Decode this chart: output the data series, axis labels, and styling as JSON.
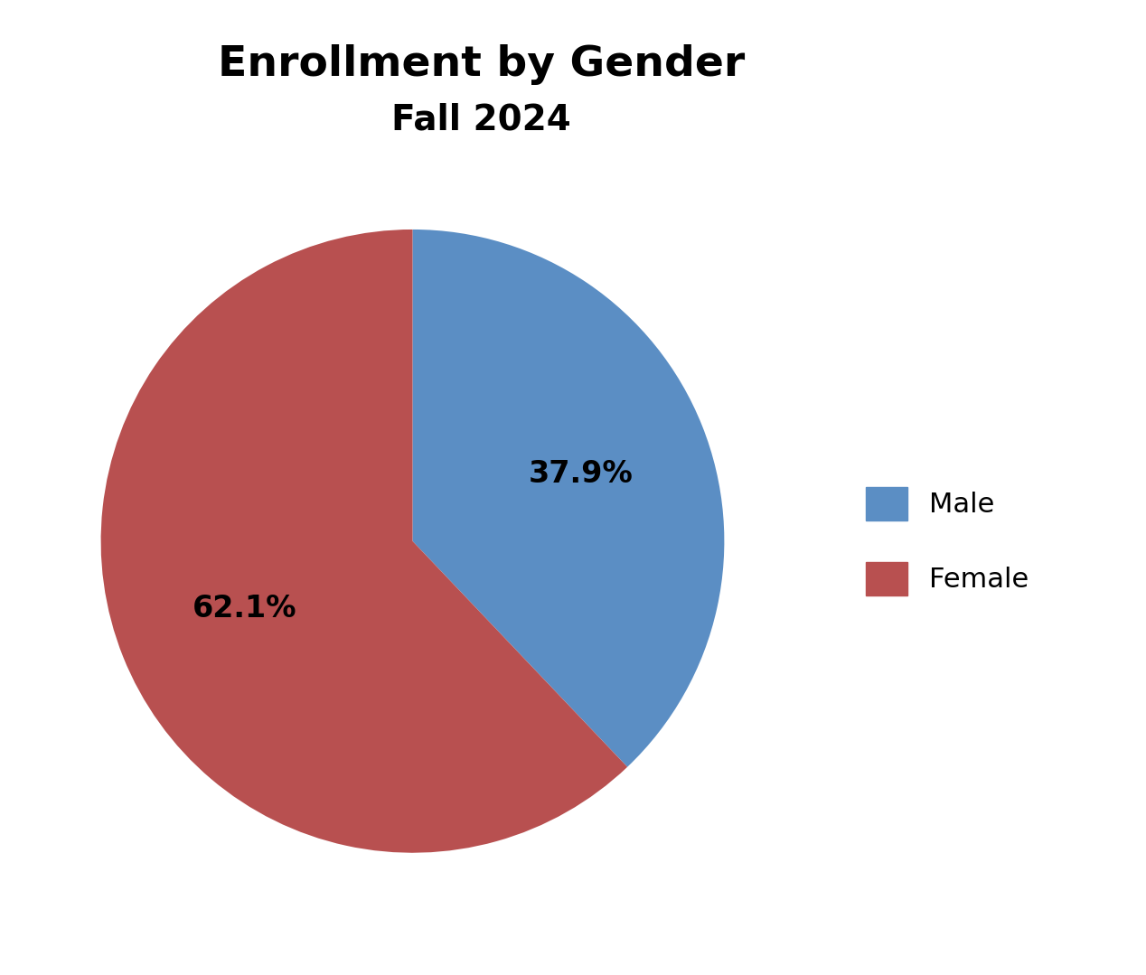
{
  "title_line1": "Enrollment by Gender",
  "title_line2": "Fall 2024",
  "labels": [
    "Male",
    "Female"
  ],
  "values": [
    37.9,
    62.1
  ],
  "colors": [
    "#5b8ec4",
    "#b85050"
  ],
  "label_texts": [
    "37.9%",
    "62.1%"
  ],
  "title_fontsize": 34,
  "subtitle_fontsize": 28,
  "label_fontsize": 24,
  "legend_fontsize": 22,
  "background_color": "#ffffff",
  "startangle": 90
}
